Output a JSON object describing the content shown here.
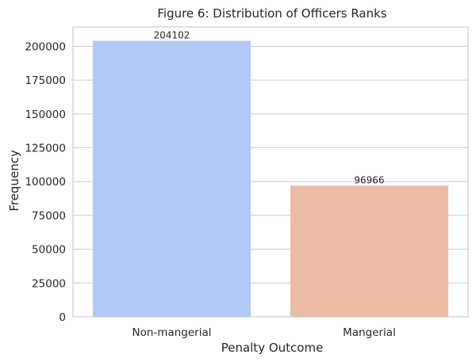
{
  "chart_data": {
    "type": "bar",
    "title": "Figure 6: Distribution of Officers Ranks",
    "xlabel": "Penalty Outcome",
    "ylabel": "Frequency",
    "categories": [
      "Non-mangerial",
      "Mangerial"
    ],
    "values": [
      204102,
      96966
    ],
    "data_labels": [
      "204102",
      "96966"
    ],
    "colors": [
      "#b3c9f5",
      "#edbca5"
    ],
    "ylim": [
      0,
      214307
    ],
    "yticks": [
      0,
      25000,
      50000,
      75000,
      100000,
      125000,
      150000,
      175000,
      200000
    ],
    "grid": true,
    "legend": "none"
  }
}
